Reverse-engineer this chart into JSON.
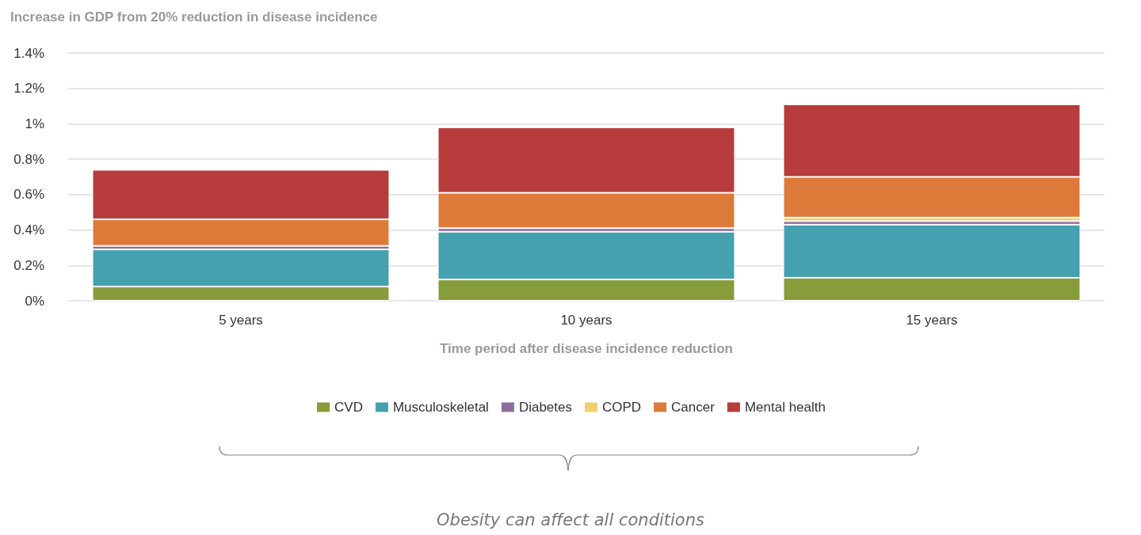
{
  "chart_data": {
    "type": "bar",
    "stacked": true,
    "title": "Increase in GDP from 20% reduction in disease incidence",
    "xlabel": "Time period after disease incidence reduction",
    "categories": [
      "5 years",
      "10 years",
      "15 years"
    ],
    "series": [
      {
        "name": "CVD",
        "color": "#879c3a",
        "values": [
          0.08,
          0.12,
          0.13
        ]
      },
      {
        "name": "Musculoskeletal",
        "color": "#45a0b0",
        "values": [
          0.21,
          0.27,
          0.3
        ]
      },
      {
        "name": "Diabetes",
        "color": "#8d6c9c",
        "values": [
          0.02,
          0.02,
          0.02
        ]
      },
      {
        "name": "COPD",
        "color": "#f2cf6e",
        "values": [
          null,
          null,
          0.02
        ]
      },
      {
        "name": "Cancer",
        "color": "#dd7a3a",
        "values": [
          0.15,
          0.2,
          0.23
        ]
      },
      {
        "name": "Mental health",
        "color": "#b83c3c",
        "values": [
          0.28,
          0.37,
          0.41
        ]
      }
    ],
    "ylim": [
      0,
      1.4
    ],
    "yticks": [
      {
        "value": 0,
        "label": "0%"
      },
      {
        "value": 0.2,
        "label": "0.2%"
      },
      {
        "value": 0.4,
        "label": "0.4%"
      },
      {
        "value": 0.6,
        "label": "0.6%"
      },
      {
        "value": 0.8,
        "label": "0.8%"
      },
      {
        "value": 1,
        "label": "1%"
      },
      {
        "value": 1.2,
        "label": "1.2%"
      },
      {
        "value": 1.4,
        "label": "1.4%"
      }
    ],
    "grid": "y",
    "legend": "bottom",
    "annotations": [
      "Obesity can affect all conditions"
    ]
  }
}
